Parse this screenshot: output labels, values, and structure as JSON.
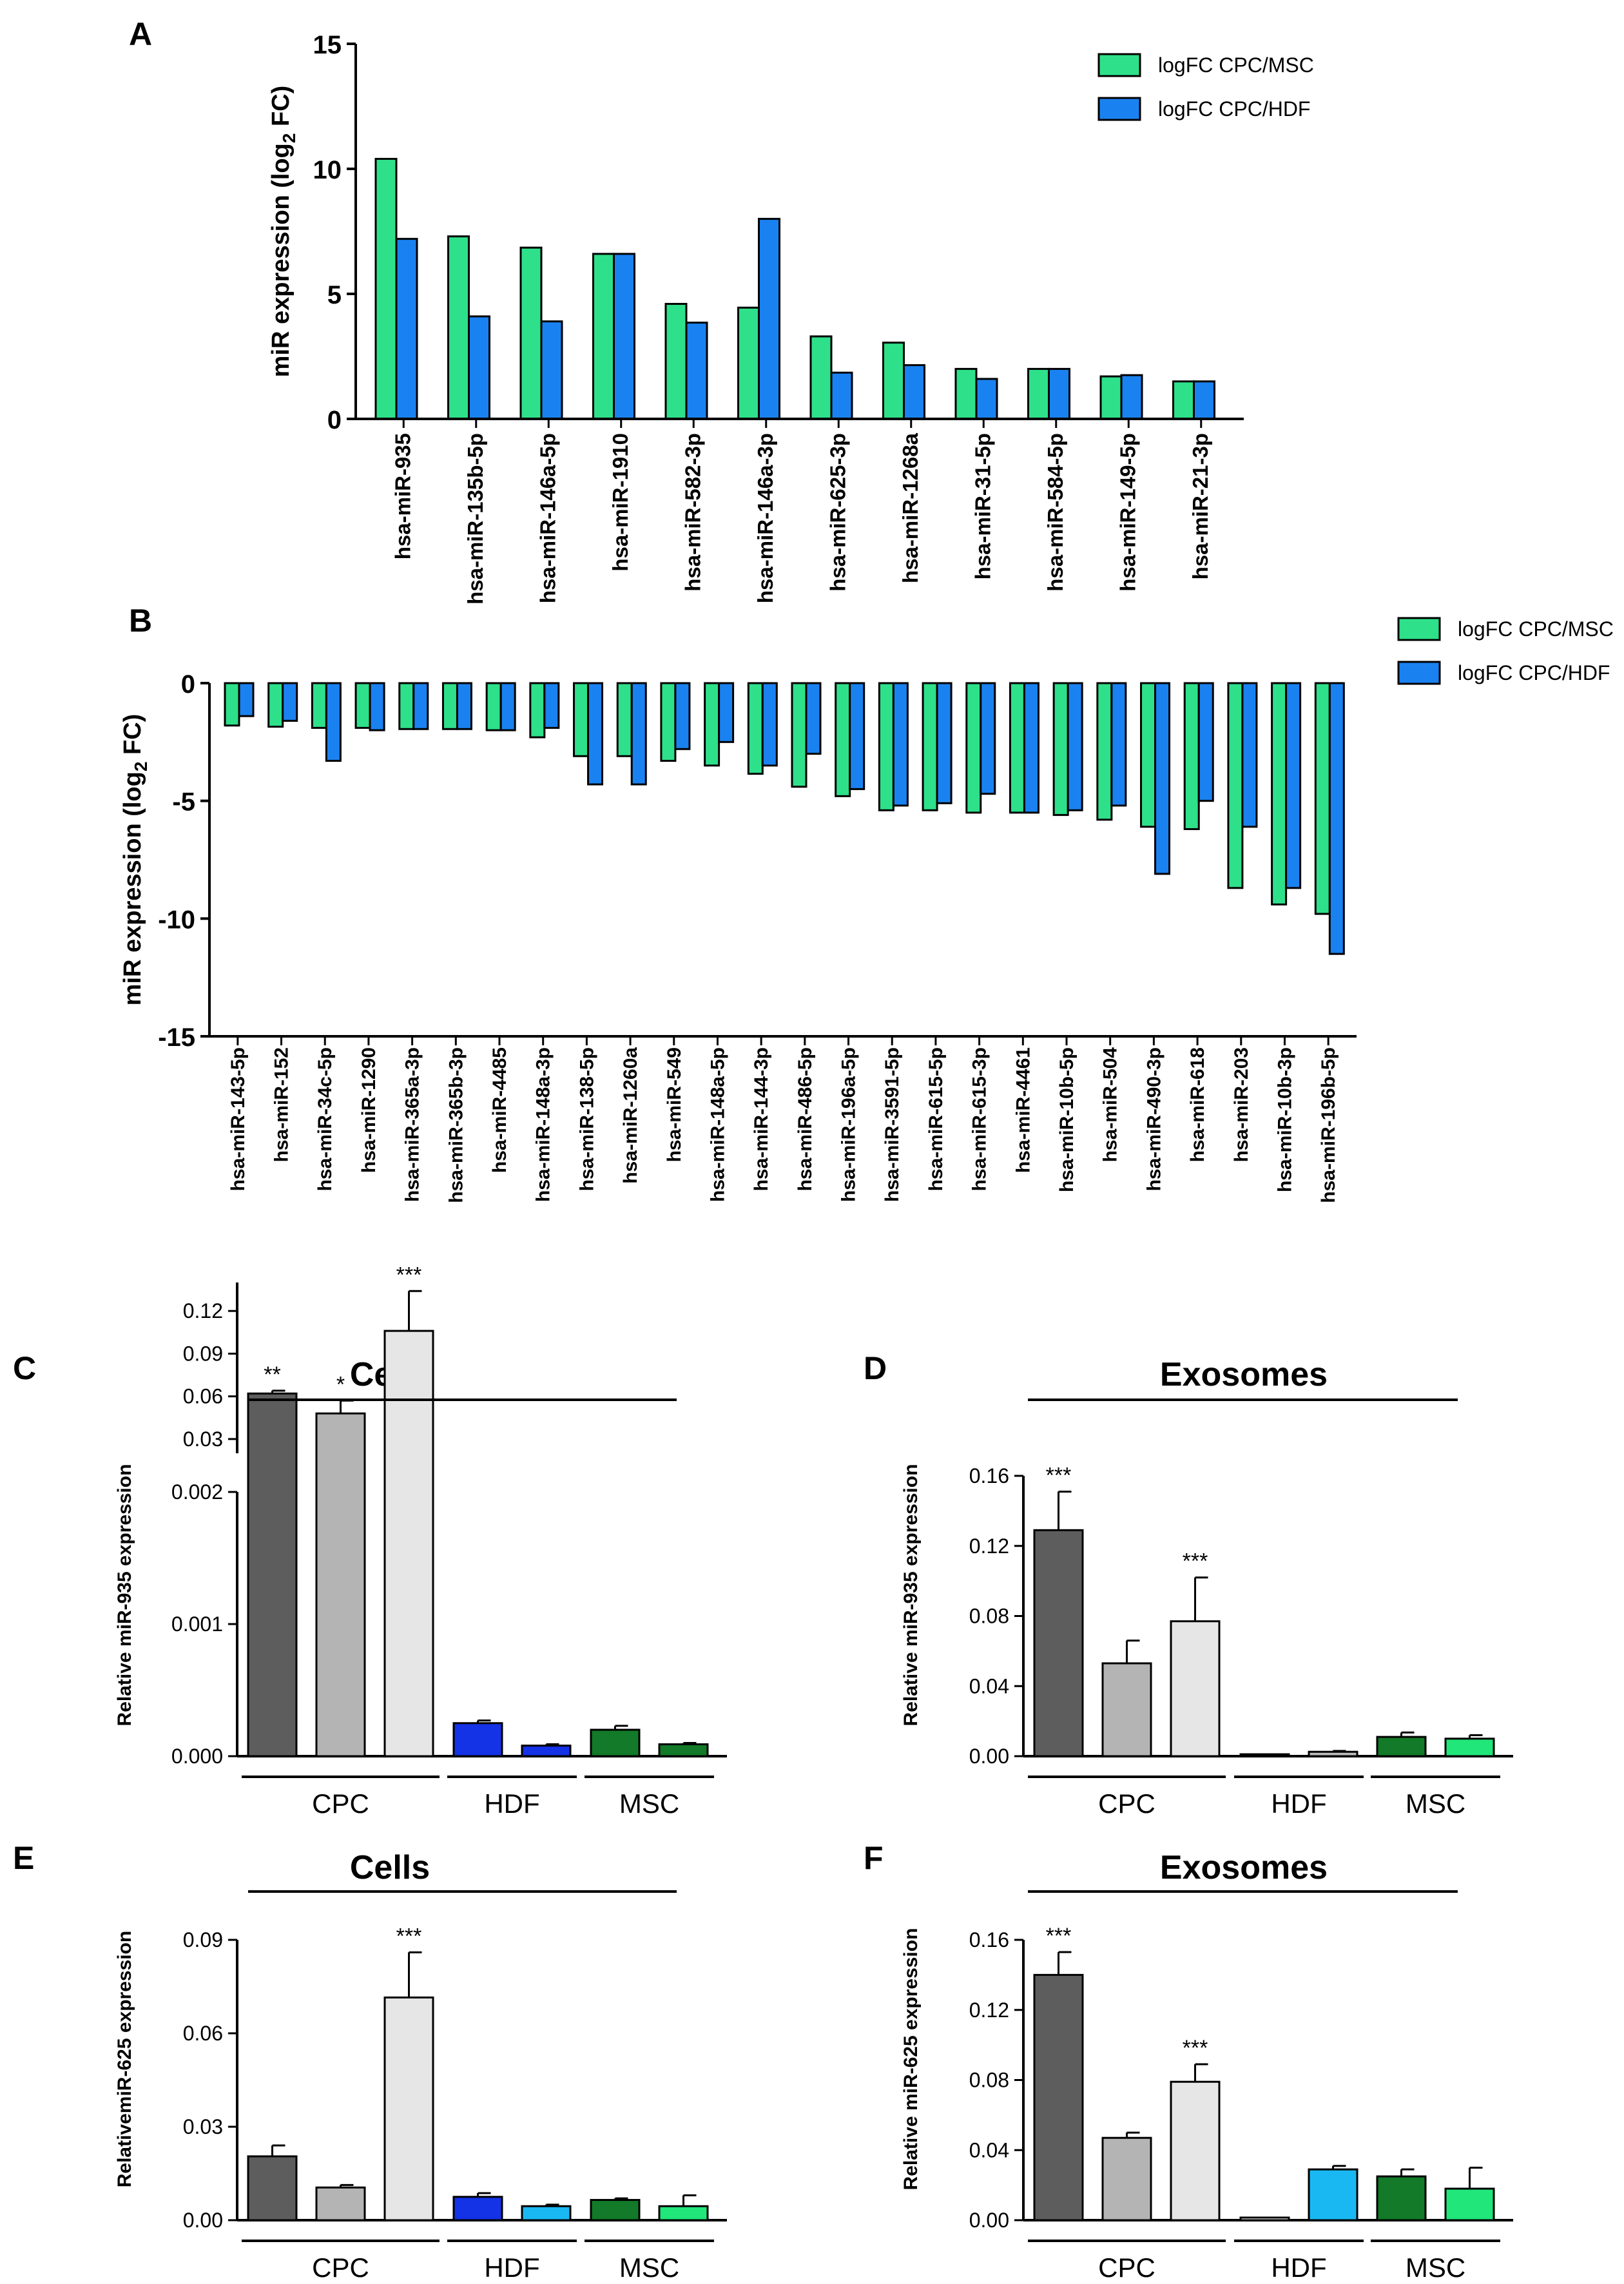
{
  "panels": {
    "A": {
      "letter": "A"
    },
    "B": {
      "letter": "B"
    },
    "C": {
      "letter": "C",
      "title": "Cells"
    },
    "D": {
      "letter": "D",
      "title": "Exosomes"
    },
    "E": {
      "letter": "E",
      "title": "Cells"
    },
    "F": {
      "letter": "F",
      "title": "Exosomes"
    }
  },
  "colors": {
    "msc_green": "#2ee08a",
    "hdf_blue": "#1a82f0",
    "cpc1": "#5d5d5d",
    "cpc2": "#b4b4b4",
    "cpc3": "#e6e6e6",
    "hdf_dark_blue": "#1432e6",
    "hdf_light_blue": "#1ab8f2",
    "msc_dark_green": "#127a28",
    "msc_light_green": "#21e67a"
  },
  "chart_data": [
    {
      "id": "A",
      "type": "bar",
      "ylabel": "miR expression (log2 FC)",
      "ylim": [
        0,
        15
      ],
      "yticks": [
        "0",
        "5",
        "10",
        "15"
      ],
      "legend": [
        "logFC CPC/MSC",
        "logFC CPC/HDF"
      ],
      "legend_position": "top-right",
      "categories": [
        "hsa-miR-935",
        "hsa-miR-135b-5p",
        "hsa-miR-146a-5p",
        "hsa-miR-1910",
        "hsa-miR-582-3p",
        "hsa-miR-146a-3p",
        "hsa-miR-625-3p",
        "hsa-miR-1268a",
        "hsa-miR-31-5p",
        "hsa-miR-584-5p",
        "hsa-miR-149-5p",
        "hsa-miR-21-3p"
      ],
      "series": [
        {
          "name": "logFC CPC/MSC",
          "values": [
            10.4,
            7.3,
            6.85,
            6.6,
            4.6,
            4.45,
            3.3,
            3.05,
            2.0,
            2.0,
            1.7,
            1.5
          ]
        },
        {
          "name": "logFC CPC/HDF",
          "values": [
            7.2,
            4.1,
            3.9,
            6.6,
            3.85,
            8.0,
            1.85,
            2.15,
            1.6,
            2.0,
            1.75,
            1.5
          ]
        }
      ]
    },
    {
      "id": "B",
      "type": "bar",
      "ylabel": "miR expression (log2 FC)",
      "ylim": [
        -15,
        0
      ],
      "yticks": [
        "0",
        "-5",
        "-10",
        "-15"
      ],
      "legend": [
        "logFC CPC/MSC",
        "logFC CPC/HDF"
      ],
      "legend_position": "top-right",
      "categories": [
        "hsa-miR-143-5p",
        "hsa-miR-152",
        "hsa-miR-34c-5p",
        "hsa-miR-1290",
        "hsa-miR-365a-3p",
        "hsa-miR-365b-3p",
        "hsa-miR-4485",
        "hsa-miR-148a-3p",
        "hsa-miR-138-5p",
        "hsa-miR-1260a",
        "hsa-miR-549",
        "hsa-miR-148a-5p",
        "hsa-miR-144-3p",
        "hsa-miR-486-5p",
        "hsa-miR-196a-5p",
        "hsa-miR-3591-5p",
        "hsa-miR-615-5p",
        "hsa-miR-615-3p",
        "hsa-miR-4461",
        "hsa-miR-10b-5p",
        "hsa-miR-504",
        "hsa-miR-490-3p",
        "hsa-miR-618",
        "hsa-miR-203",
        "hsa-miR-10b-3p",
        "hsa-miR-196b-5p"
      ],
      "series": [
        {
          "name": "logFC CPC/MSC",
          "values": [
            -1.8,
            -1.85,
            -1.9,
            -1.9,
            -1.95,
            -1.95,
            -2.0,
            -2.3,
            -3.1,
            -3.1,
            -3.3,
            -3.5,
            -3.85,
            -4.4,
            -4.8,
            -5.4,
            -5.4,
            -5.5,
            -5.5,
            -5.6,
            -5.8,
            -6.1,
            -6.2,
            -8.7,
            -9.4,
            -9.8
          ]
        },
        {
          "name": "logFC CPC/HDF",
          "values": [
            -1.4,
            -1.6,
            -3.3,
            -2.0,
            -1.95,
            -1.95,
            -2.0,
            -1.9,
            -4.3,
            -4.3,
            -2.8,
            -2.5,
            -3.5,
            -3.0,
            -4.5,
            -5.2,
            -5.1,
            -4.7,
            -5.5,
            -5.4,
            -5.2,
            -8.1,
            -5.0,
            -6.1,
            -8.7,
            -11.5
          ]
        }
      ]
    },
    {
      "id": "C",
      "type": "bar",
      "title": "Cells",
      "ylabel": "Relative miR-935 expression",
      "axis_break": true,
      "ylim_lower": [
        0,
        0.002
      ],
      "ylim_upper": [
        0.02,
        0.14
      ],
      "yticks_lower": [
        "0.000",
        "0.001",
        "0.002"
      ],
      "yticks_upper": [
        "0.03",
        "0.06",
        "0.09",
        "0.12"
      ],
      "groups": [
        "CPC",
        "HDF",
        "MSC"
      ],
      "values": [
        0.062,
        0.048,
        0.106,
        0.00025,
        8e-05,
        0.0002,
        9e-05
      ],
      "errors": [
        0.002,
        0.009,
        0.028,
        2e-05,
        1e-05,
        3e-05,
        1e-05
      ],
      "significance": [
        "**",
        "*",
        "***",
        "",
        "",
        "",
        ""
      ]
    },
    {
      "id": "D",
      "type": "bar",
      "title": "Exosomes",
      "ylabel": "Relative miR-935 expression",
      "ylim": [
        0,
        0.16
      ],
      "yticks": [
        "0.00",
        "0.04",
        "0.08",
        "0.12",
        "0.16"
      ],
      "groups": [
        "CPC",
        "HDF",
        "MSC"
      ],
      "values": [
        0.129,
        0.053,
        0.077,
        0.0008,
        0.0025,
        0.011,
        0.01
      ],
      "errors": [
        0.022,
        0.013,
        0.025,
        0.0002,
        0.0005,
        0.0025,
        0.002
      ],
      "significance": [
        "***",
        "",
        "***",
        "",
        "",
        "",
        ""
      ]
    },
    {
      "id": "E",
      "type": "bar",
      "title": "Cells",
      "ylabel": "RelativemiR-625 expression",
      "ylim": [
        0,
        0.09
      ],
      "yticks": [
        "0.00",
        "0.03",
        "0.06",
        "0.09"
      ],
      "groups": [
        "CPC",
        "HDF",
        "MSC"
      ],
      "values": [
        0.0205,
        0.0105,
        0.0715,
        0.0075,
        0.0045,
        0.0065,
        0.0045
      ],
      "errors": [
        0.0035,
        0.0008,
        0.0145,
        0.0012,
        0.0005,
        0.0005,
        0.0035
      ],
      "significance": [
        "",
        "",
        "***",
        "",
        "",
        "",
        ""
      ]
    },
    {
      "id": "F",
      "type": "bar",
      "title": "Exosomes",
      "ylabel": "Relative miR-625 expression",
      "ylim": [
        0,
        0.16
      ],
      "yticks": [
        "0.00",
        "0.04",
        "0.08",
        "0.12",
        "0.16"
      ],
      "groups": [
        "CPC",
        "HDF",
        "MSC"
      ],
      "values": [
        0.14,
        0.047,
        0.079,
        0.0015,
        0.029,
        0.025,
        0.018
      ],
      "errors": [
        0.013,
        0.003,
        0.01,
        0.0003,
        0.002,
        0.004,
        0.012
      ],
      "significance": [
        "***",
        "",
        "***",
        "",
        "",
        "",
        ""
      ]
    }
  ]
}
